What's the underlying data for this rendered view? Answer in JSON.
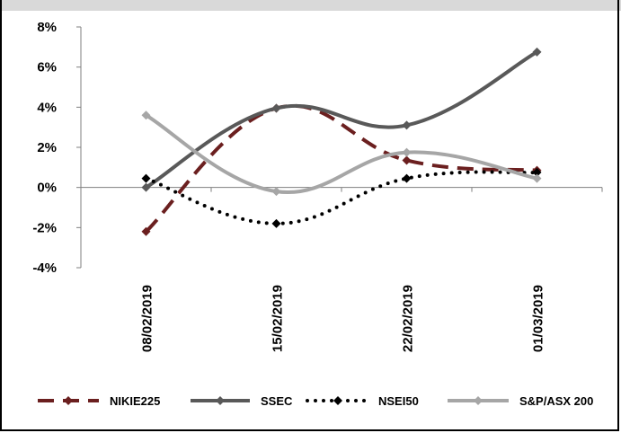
{
  "chart_data": {
    "type": "line",
    "title": "",
    "xlabel": "",
    "ylabel": "",
    "categories": [
      "08/02/2019",
      "15/02/2019",
      "22/02/2019",
      "01/03/2019"
    ],
    "y_ticks": [
      "8%",
      "6%",
      "4%",
      "2%",
      "0%",
      "-2%",
      "-4%"
    ],
    "y_tick_values": [
      8,
      6,
      4,
      2,
      0,
      -2,
      -4
    ],
    "ylim": [
      -4,
      8
    ],
    "grid": false,
    "legend_position": "bottom",
    "series": [
      {
        "name": "NIKIE225",
        "values": [
          -2.2,
          3.95,
          1.35,
          0.85
        ],
        "color": "#6b1f1f",
        "style": "dashed",
        "marker": "diamond"
      },
      {
        "name": "SSEC",
        "values": [
          0.0,
          3.95,
          3.1,
          6.75
        ],
        "color": "#595959",
        "style": "solid",
        "marker": "diamond"
      },
      {
        "name": "NSEI50",
        "values": [
          0.45,
          -1.8,
          0.45,
          0.75
        ],
        "color": "#000000",
        "style": "dotted",
        "marker": "diamond"
      },
      {
        "name": "S&P/ASX 200",
        "values": [
          3.6,
          -0.2,
          1.75,
          0.45
        ],
        "color": "#a6a6a6",
        "style": "solid",
        "marker": "diamond"
      }
    ]
  }
}
